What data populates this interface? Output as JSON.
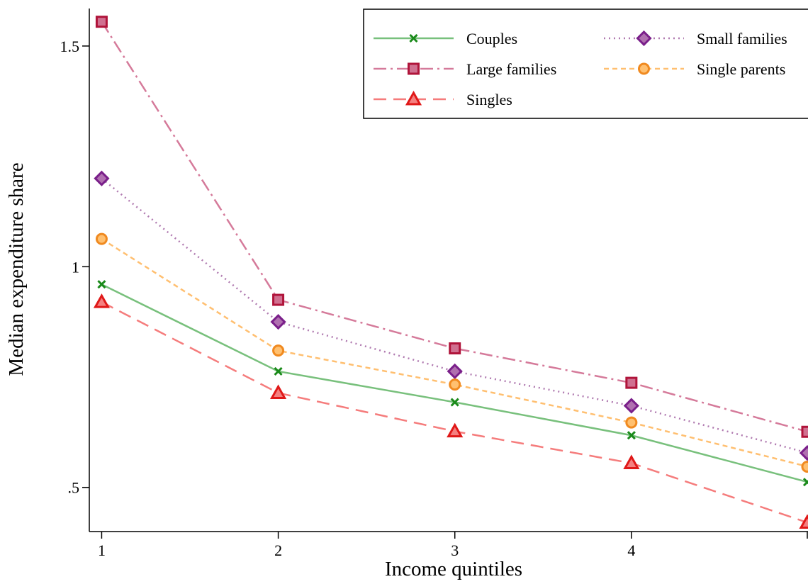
{
  "chart_data": {
    "type": "line",
    "xlabel": "Income quintiles",
    "ylabel": "Median expenditure share",
    "x": [
      1,
      2,
      3,
      4,
      5
    ],
    "xticks": [
      {
        "value": 1,
        "label": "1"
      },
      {
        "value": 2,
        "label": "2"
      },
      {
        "value": 3,
        "label": "3"
      },
      {
        "value": 4,
        "label": "4"
      }
    ],
    "yticks": [
      {
        "value": 0.5,
        "label": ".5"
      },
      {
        "value": 1,
        "label": "1"
      },
      {
        "value": 1.5,
        "label": "1.5"
      }
    ],
    "xlim": [
      0.93,
      5.0
    ],
    "ylim": [
      0.4,
      1.585
    ],
    "legend_position": "top-right",
    "series": [
      {
        "name": "Couples",
        "values": [
          0.96,
          0.763,
          0.693,
          0.618,
          0.512
        ],
        "color": "#78c07c",
        "marker": "x",
        "marker_color": "#1a8a1a",
        "dash": "solid"
      },
      {
        "name": "Small families",
        "values": [
          1.2,
          0.875,
          0.763,
          0.685,
          0.578
        ],
        "color": "#b07ab0",
        "marker": "diamond",
        "marker_color": "#7a1f8a",
        "marker_fill": "#b070b0",
        "dash": "dotted"
      },
      {
        "name": "Large families",
        "values": [
          1.555,
          0.925,
          0.815,
          0.737,
          0.626
        ],
        "color": "#d57a9a",
        "marker": "square",
        "marker_color": "#b0143a",
        "marker_fill": "#d07090",
        "dash": "dashdot"
      },
      {
        "name": "Single parents",
        "values": [
          1.063,
          0.81,
          0.733,
          0.647,
          0.547
        ],
        "color": "#ffbf70",
        "marker": "circle",
        "marker_color": "#f08a20",
        "marker_fill": "#ffc070",
        "dash": "shortdash"
      },
      {
        "name": "Singles",
        "values": [
          0.92,
          0.714,
          0.627,
          0.555,
          0.42
        ],
        "color": "#f57c7c",
        "marker": "triangle",
        "marker_color": "#e01818",
        "marker_fill": "#f58080",
        "dash": "longdash"
      }
    ]
  }
}
